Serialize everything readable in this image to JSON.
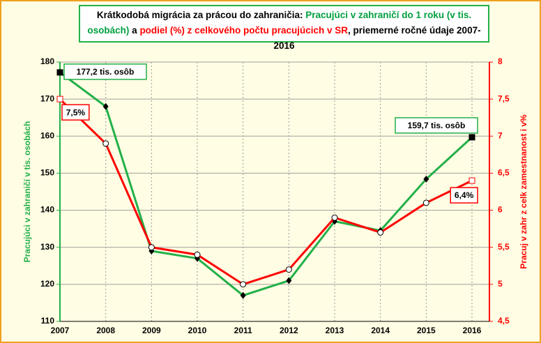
{
  "chart_data": {
    "type": "line",
    "title_parts": [
      {
        "text": "Krátkodobá migrácia za prácou do zahraničia: ",
        "color": "#000000"
      },
      {
        "text": "Pracujúci v zahraničí do 1 roku (v tis. osobách)",
        "color": "#00a040"
      },
      {
        "text": " a ",
        "color": "#000000"
      },
      {
        "text": "podiel (%) z celkového počtu pracujúcich v SR",
        "color": "#ff0000"
      },
      {
        "text": ", priemerné ročné údaje 2007-2016",
        "color": "#000000"
      }
    ],
    "categories": [
      "2007",
      "2008",
      "2009",
      "2010",
      "2011",
      "2012",
      "2013",
      "2014",
      "2015",
      "2016"
    ],
    "ylabel": "Pracujúci v zahraničí v tis. osobách",
    "y2label": "Pracuj v zahr z celk zamestnanost i v%",
    "ylim": [
      110,
      180
    ],
    "yticks": [
      110,
      120,
      130,
      140,
      150,
      160,
      170,
      180
    ],
    "y2lim": [
      4.5,
      8
    ],
    "y2ticks": [
      {
        "value": 4.5,
        "label": "4,5"
      },
      5,
      {
        "value": 5.5,
        "label": "5,5"
      },
      6,
      {
        "value": 6.5,
        "label": "6,5"
      },
      7,
      {
        "value": 7.5,
        "label": "7,5"
      },
      8
    ],
    "grid": true,
    "series": [
      {
        "name": "Pracujúci v zahraničí do 1 roku",
        "color": "#22b04a",
        "axis": "y",
        "values": [
          177.2,
          168,
          129,
          127,
          117,
          121,
          137,
          134.5,
          148.4,
          159.7
        ],
        "value_labels": [
          "177,2 tis. osôb",
          null,
          null,
          null,
          null,
          null,
          null,
          null,
          null,
          "159,7 tis. osôb"
        ]
      },
      {
        "name": "podiel (%)",
        "color": "#ff0000",
        "axis": "y2",
        "values": [
          7.5,
          6.9,
          5.5,
          5.4,
          5.0,
          5.2,
          5.9,
          5.7,
          6.1,
          6.4
        ],
        "value_labels": [
          "7,5%",
          null,
          null,
          null,
          null,
          null,
          null,
          null,
          null,
          "6,4%"
        ]
      }
    ]
  }
}
